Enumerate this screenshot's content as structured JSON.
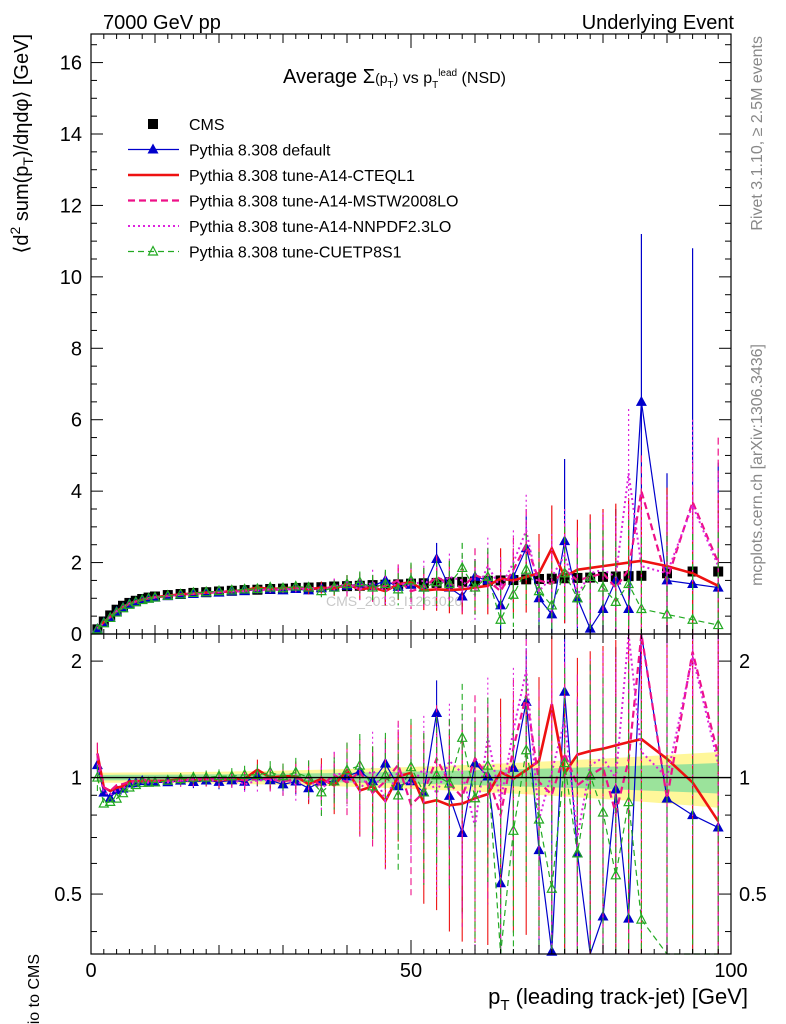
{
  "header": {
    "left": "7000 GeV pp",
    "right": "Underlying Event"
  },
  "side": {
    "rivet": "Rivet 3.1.10, ≥ 2.5M events",
    "site": "mcplots.cern.ch [arXiv:1306.3436]"
  },
  "watermark": "CMS_2013_I1261026",
  "chart_data": {
    "type": "scatter",
    "title": "Average Σ(p_T) vs p_T^lead (NSD)",
    "xlabel": "p_T (leading track-jet) [GeV]",
    "ylabel": "⟨d² sum(p_T)/dηdφ⟩ [GeV]",
    "ratio_ylabel": "Ratio to CMS",
    "xlim": [
      0,
      100
    ],
    "ylim": [
      0,
      16.8
    ],
    "ratio_ylim": [
      0.35,
      2.35
    ],
    "ratio_scale": "log",
    "xticks": [
      0,
      50,
      100
    ],
    "yticks": [
      0,
      2,
      4,
      6,
      8,
      10,
      12,
      14,
      16
    ],
    "ratio_yticks": [
      0.5,
      1,
      2
    ],
    "legend_position": "top-left",
    "x": [
      1,
      2,
      3,
      4,
      5,
      6,
      7,
      8,
      9,
      10,
      12,
      14,
      16,
      18,
      20,
      22,
      24,
      26,
      28,
      30,
      32,
      34,
      36,
      38,
      40,
      42,
      44,
      46,
      48,
      50,
      52,
      54,
      56,
      58,
      60,
      62,
      64,
      66,
      68,
      70,
      72,
      74,
      76,
      78,
      80,
      82,
      84,
      86,
      90,
      94,
      98
    ],
    "series": [
      {
        "name": "CMS",
        "color": "#000000",
        "values": [
          0.13,
          0.35,
          0.52,
          0.68,
          0.79,
          0.87,
          0.93,
          0.98,
          1.02,
          1.05,
          1.09,
          1.12,
          1.15,
          1.17,
          1.19,
          1.21,
          1.23,
          1.24,
          1.26,
          1.27,
          1.29,
          1.3,
          1.31,
          1.33,
          1.34,
          1.35,
          1.37,
          1.38,
          1.39,
          1.41,
          1.42,
          1.43,
          1.45,
          1.46,
          1.47,
          1.49,
          1.5,
          1.51,
          1.53,
          1.54,
          1.55,
          1.56,
          1.57,
          1.58,
          1.6,
          1.61,
          1.62,
          1.63,
          1.7,
          1.75,
          1.75
        ]
      },
      {
        "name": "Pythia 8.308 default",
        "color": "#0000cc",
        "values": [
          0.14,
          0.32,
          0.46,
          0.63,
          0.74,
          0.84,
          0.9,
          0.96,
          0.99,
          1.02,
          1.06,
          1.1,
          1.12,
          1.15,
          1.16,
          1.19,
          1.2,
          1.25,
          1.24,
          1.22,
          1.26,
          1.22,
          1.28,
          1.3,
          1.35,
          1.4,
          1.34,
          1.5,
          1.32,
          1.38,
          1.3,
          2.1,
          1.3,
          1.05,
          1.6,
          1.5,
          0.8,
          1.6,
          2.4,
          1.0,
          0.55,
          2.6,
          1.0,
          0.15,
          0.7,
          1.5,
          0.7,
          6.5,
          1.5,
          1.4,
          1.3
        ],
        "errors": [
          0.01,
          0.01,
          0.01,
          0.02,
          0.02,
          0.02,
          0.02,
          0.02,
          0.02,
          0.03,
          0.03,
          0.03,
          0.04,
          0.04,
          0.05,
          0.05,
          0.06,
          0.07,
          0.07,
          0.08,
          0.09,
          0.1,
          0.12,
          0.13,
          0.15,
          0.17,
          0.2,
          0.22,
          0.25,
          0.28,
          0.3,
          0.45,
          0.35,
          0.4,
          0.5,
          0.5,
          0.7,
          0.7,
          0.9,
          1.0,
          1.2,
          2.3,
          1.5,
          1.6,
          1.8,
          2.0,
          2.2,
          4.7,
          3.0,
          9.4,
          3.5
        ]
      },
      {
        "name": "Pythia 8.308 tune-A14-CTEQL1",
        "color": "#ee1111",
        "values": [
          0.15,
          0.33,
          0.48,
          0.64,
          0.75,
          0.85,
          0.91,
          0.96,
          1.0,
          1.03,
          1.07,
          1.11,
          1.13,
          1.16,
          1.17,
          1.2,
          1.22,
          1.3,
          1.26,
          1.28,
          1.3,
          1.25,
          1.3,
          1.27,
          1.4,
          1.25,
          1.3,
          1.2,
          1.4,
          1.45,
          1.22,
          1.25,
          1.23,
          1.25,
          1.3,
          1.35,
          1.55,
          1.5,
          1.6,
          1.7,
          2.4,
          1.6,
          1.8,
          1.85,
          1.9,
          1.95,
          2.0,
          2.05,
          1.9,
          1.7,
          1.35
        ],
        "errors": [
          0.01,
          0.01,
          0.01,
          0.02,
          0.02,
          0.02,
          0.02,
          0.02,
          0.03,
          0.03,
          0.03,
          0.04,
          0.04,
          0.05,
          0.05,
          0.06,
          0.07,
          0.08,
          0.09,
          0.1,
          0.12,
          0.14,
          0.17,
          0.2,
          0.25,
          0.3,
          0.35,
          0.4,
          0.45,
          0.5,
          0.55,
          0.6,
          0.65,
          0.7,
          0.75,
          0.8,
          0.85,
          0.9,
          1.0,
          1.1,
          1.2,
          1.3,
          1.4,
          1.5,
          1.6,
          1.7,
          1.8,
          2.0,
          2.2,
          2.4,
          2.6
        ]
      },
      {
        "name": "Pythia 8.308 tune-A14-MSTW2008LO",
        "color": "#ee1188",
        "values": [
          0.15,
          0.33,
          0.48,
          0.65,
          0.76,
          0.85,
          0.91,
          0.97,
          1.0,
          1.03,
          1.07,
          1.1,
          1.14,
          1.16,
          1.18,
          1.2,
          1.21,
          1.23,
          1.25,
          1.24,
          1.28,
          1.3,
          1.25,
          1.35,
          1.3,
          1.4,
          1.25,
          1.35,
          1.5,
          1.2,
          1.3,
          1.6,
          1.4,
          1.3,
          1.65,
          1.5,
          1.2,
          1.8,
          2.5,
          1.5,
          1.4,
          1.8,
          1.5,
          1.6,
          1.7,
          1.3,
          1.8,
          4.0,
          1.5,
          3.7,
          2.0
        ],
        "errors": [
          0.01,
          0.01,
          0.01,
          0.02,
          0.02,
          0.02,
          0.02,
          0.02,
          0.03,
          0.03,
          0.03,
          0.04,
          0.04,
          0.05,
          0.05,
          0.06,
          0.07,
          0.08,
          0.09,
          0.1,
          0.12,
          0.14,
          0.17,
          0.2,
          0.25,
          0.3,
          0.35,
          0.4,
          0.45,
          0.5,
          0.55,
          0.6,
          0.65,
          0.7,
          0.75,
          0.8,
          0.85,
          0.9,
          1.0,
          1.1,
          1.2,
          1.3,
          1.4,
          1.5,
          1.6,
          1.7,
          1.8,
          1.0,
          2.2,
          1.1,
          3.5
        ]
      },
      {
        "name": "Pythia 8.308 tune-A14-NNPDF2.3LO",
        "color": "#dd22dd",
        "values": [
          0.14,
          0.32,
          0.47,
          0.63,
          0.74,
          0.84,
          0.9,
          0.95,
          0.99,
          1.02,
          1.06,
          1.1,
          1.13,
          1.15,
          1.17,
          1.2,
          1.18,
          1.22,
          1.24,
          1.26,
          1.24,
          1.28,
          1.22,
          1.35,
          1.38,
          1.25,
          1.45,
          1.2,
          1.45,
          1.35,
          1.5,
          1.3,
          1.6,
          1.5,
          1.1,
          1.9,
          1.3,
          2.0,
          2.9,
          1.2,
          1.6,
          2.2,
          1.1,
          1.7,
          1.8,
          1.6,
          4.5,
          1.9,
          1.7,
          3.6,
          1.9
        ],
        "errors": [
          0.01,
          0.01,
          0.01,
          0.02,
          0.02,
          0.02,
          0.02,
          0.02,
          0.03,
          0.03,
          0.03,
          0.04,
          0.04,
          0.05,
          0.05,
          0.06,
          0.07,
          0.08,
          0.09,
          0.1,
          0.12,
          0.14,
          0.17,
          0.2,
          0.25,
          0.3,
          0.35,
          0.4,
          0.45,
          0.5,
          0.55,
          0.6,
          0.65,
          0.7,
          0.75,
          0.8,
          0.85,
          0.9,
          1.0,
          1.1,
          1.2,
          1.3,
          1.4,
          1.5,
          1.6,
          1.7,
          1.8,
          2.0,
          2.2,
          2.4,
          2.6
        ]
      },
      {
        "name": "Pythia 8.308 tune-CUETP8S1",
        "color": "#22aa22",
        "values": [
          0.13,
          0.3,
          0.45,
          0.6,
          0.72,
          0.82,
          0.89,
          0.95,
          0.99,
          1.02,
          1.07,
          1.11,
          1.15,
          1.17,
          1.2,
          1.22,
          1.25,
          1.26,
          1.3,
          1.28,
          1.33,
          1.3,
          1.2,
          1.3,
          1.4,
          1.45,
          1.3,
          1.4,
          1.25,
          1.5,
          1.3,
          1.45,
          1.4,
          1.85,
          1.3,
          1.6,
          0.4,
          1.1,
          1.8,
          1.2,
          0.8,
          1.7,
          1.0,
          1.6,
          1.3,
          0.9,
          1.4,
          0.7,
          0.55,
          0.4,
          0.25
        ],
        "errors": [
          0.01,
          0.01,
          0.01,
          0.02,
          0.02,
          0.02,
          0.02,
          0.02,
          0.03,
          0.03,
          0.03,
          0.04,
          0.04,
          0.05,
          0.05,
          0.06,
          0.07,
          0.08,
          0.09,
          0.1,
          0.12,
          0.14,
          0.17,
          0.2,
          0.25,
          0.3,
          0.35,
          0.4,
          0.45,
          0.5,
          0.55,
          0.6,
          0.65,
          0.7,
          0.75,
          0.8,
          0.85,
          0.9,
          1.0,
          1.1,
          1.2,
          1.3,
          1.4,
          1.5,
          1.6,
          1.7,
          1.8,
          2.0,
          2.2,
          2.4,
          2.6
        ]
      }
    ]
  }
}
